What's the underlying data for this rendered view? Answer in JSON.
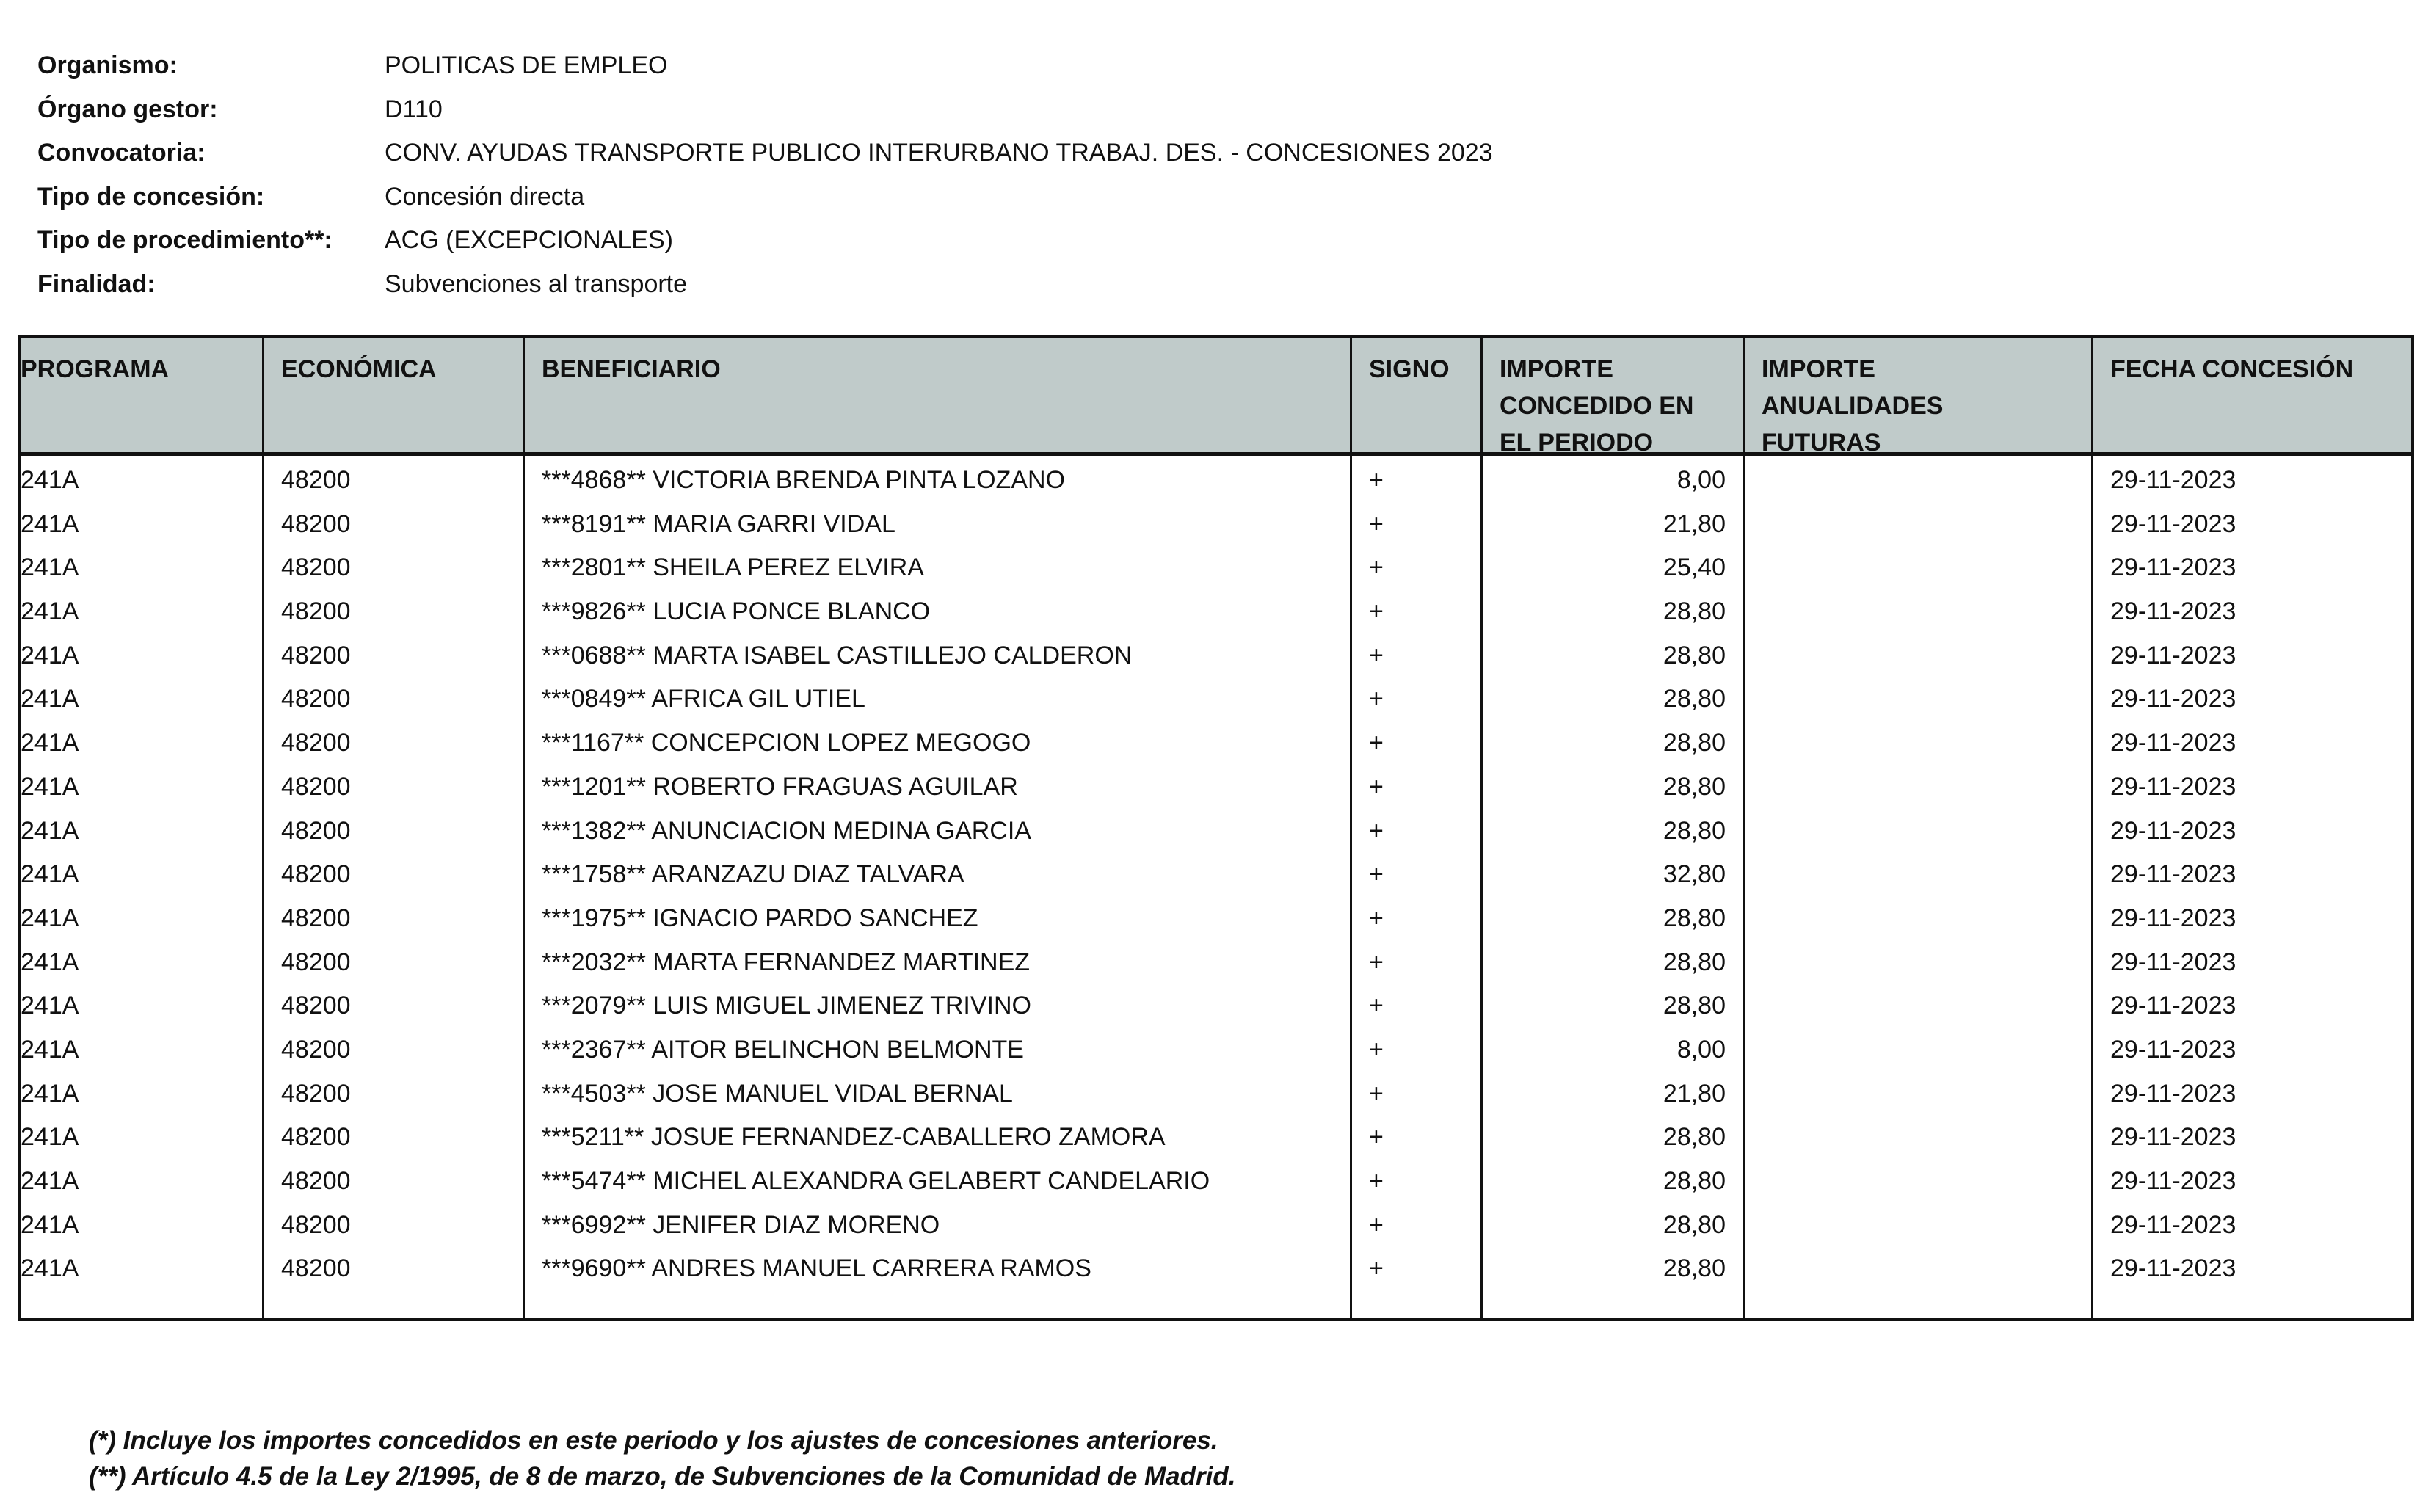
{
  "meta": [
    {
      "label": "Organismo:",
      "value": "POLITICAS DE EMPLEO"
    },
    {
      "label": "Órgano gestor:",
      "value": "D110"
    },
    {
      "label": "Convocatoria:",
      "value": "CONV. AYUDAS TRANSPORTE PUBLICO INTERURBANO TRABAJ. DES. - CONCESIONES 2023"
    },
    {
      "label": "Tipo de concesión:",
      "value": "Concesión directa"
    },
    {
      "label": "Tipo de procedimiento**:",
      "value": "ACG (EXCEPCIONALES)"
    },
    {
      "label": "Finalidad:",
      "value": "Subvenciones al transporte"
    }
  ],
  "table": {
    "header_color": "#c0cbca",
    "columns": [
      "PROGRAMA",
      "ECONÓMICA",
      "BENEFICIARIO",
      "SIGNO",
      "IMPORTE\nCONCEDIDO EN\nEL PERIODO",
      "IMPORTE\nANUALIDADES\nFUTURAS",
      "FECHA CONCESIÓN"
    ],
    "rows": [
      [
        "241A",
        "48200",
        "***4868** VICTORIA BRENDA PINTA LOZANO",
        "+",
        "8,00",
        "",
        "29-11-2023"
      ],
      [
        "241A",
        "48200",
        "***8191** MARIA GARRI VIDAL",
        "+",
        "21,80",
        "",
        "29-11-2023"
      ],
      [
        "241A",
        "48200",
        "***2801** SHEILA PEREZ ELVIRA",
        "+",
        "25,40",
        "",
        "29-11-2023"
      ],
      [
        "241A",
        "48200",
        "***9826** LUCIA PONCE BLANCO",
        "+",
        "28,80",
        "",
        "29-11-2023"
      ],
      [
        "241A",
        "48200",
        "***0688** MARTA ISABEL CASTILLEJO CALDERON",
        "+",
        "28,80",
        "",
        "29-11-2023"
      ],
      [
        "241A",
        "48200",
        "***0849** AFRICA GIL UTIEL",
        "+",
        "28,80",
        "",
        "29-11-2023"
      ],
      [
        "241A",
        "48200",
        "***1167** CONCEPCION LOPEZ MEGOGO",
        "+",
        "28,80",
        "",
        "29-11-2023"
      ],
      [
        "241A",
        "48200",
        "***1201** ROBERTO FRAGUAS AGUILAR",
        "+",
        "28,80",
        "",
        "29-11-2023"
      ],
      [
        "241A",
        "48200",
        "***1382** ANUNCIACION MEDINA GARCIA",
        "+",
        "28,80",
        "",
        "29-11-2023"
      ],
      [
        "241A",
        "48200",
        "***1758** ARANZAZU DIAZ TALVARA",
        "+",
        "32,80",
        "",
        "29-11-2023"
      ],
      [
        "241A",
        "48200",
        "***1975** IGNACIO PARDO SANCHEZ",
        "+",
        "28,80",
        "",
        "29-11-2023"
      ],
      [
        "241A",
        "48200",
        "***2032** MARTA FERNANDEZ MARTINEZ",
        "+",
        "28,80",
        "",
        "29-11-2023"
      ],
      [
        "241A",
        "48200",
        "***2079** LUIS MIGUEL JIMENEZ TRIVINO",
        "+",
        "28,80",
        "",
        "29-11-2023"
      ],
      [
        "241A",
        "48200",
        "***2367** AITOR BELINCHON BELMONTE",
        "+",
        "8,00",
        "",
        "29-11-2023"
      ],
      [
        "241A",
        "48200",
        "***4503** JOSE MANUEL VIDAL BERNAL",
        "+",
        "21,80",
        "",
        "29-11-2023"
      ],
      [
        "241A",
        "48200",
        "***5211** JOSUE FERNANDEZ-CABALLERO ZAMORA",
        "+",
        "28,80",
        "",
        "29-11-2023"
      ],
      [
        "241A",
        "48200",
        "***5474** MICHEL ALEXANDRA GELABERT CANDELARIO",
        "+",
        "28,80",
        "",
        "29-11-2023"
      ],
      [
        "241A",
        "48200",
        "***6992** JENIFER DIAZ MORENO",
        "+",
        "28,80",
        "",
        "29-11-2023"
      ],
      [
        "241A",
        "48200",
        "***9690** ANDRES MANUEL CARRERA RAMOS",
        "+",
        "28,80",
        "",
        "29-11-2023"
      ]
    ]
  },
  "footnotes": [
    "(*) Incluye los importes concedidos en este periodo y los ajustes de concesiones anteriores.",
    "(**) Artículo 4.5 de la Ley 2/1995, de 8 de marzo, de Subvenciones de la Comunidad de Madrid."
  ]
}
